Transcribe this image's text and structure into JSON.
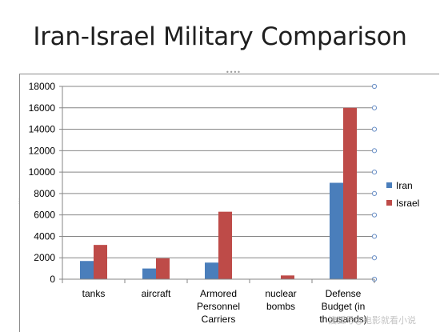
{
  "slide": {
    "title": "Iran-Israel Military Comparison"
  },
  "watermark": {
    "text": "搜狐号@电影就看小说"
  },
  "colors": {
    "iran": "#4a7ebb",
    "israel": "#be4b48",
    "grid": "#868686",
    "axis": "#868686"
  },
  "chart_data": {
    "type": "bar",
    "title": "",
    "xlabel": "",
    "ylabel": "",
    "ylim": [
      0,
      18000
    ],
    "yticks": [
      0,
      2000,
      4000,
      6000,
      8000,
      10000,
      12000,
      14000,
      16000,
      18000
    ],
    "grid": true,
    "legend_position": "right",
    "categories": [
      [
        "tanks"
      ],
      [
        "aircraft"
      ],
      [
        "Armored",
        "Personnel",
        "Carriers"
      ],
      [
        "nuclear",
        "bombs"
      ],
      [
        "Defense",
        "Budget (in",
        "thousands)"
      ]
    ],
    "series": [
      {
        "name": "Iran",
        "color": "#4a7ebb",
        "values": [
          1700,
          1000,
          1550,
          0,
          9000
        ]
      },
      {
        "name": "Israel",
        "color": "#be4b48",
        "values": [
          3200,
          1950,
          6300,
          350,
          16000
        ]
      }
    ]
  }
}
